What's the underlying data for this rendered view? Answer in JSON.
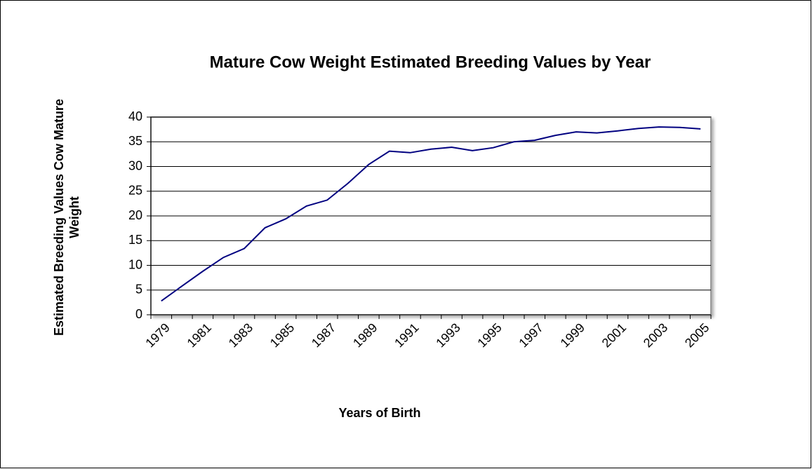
{
  "chart_data": {
    "type": "line",
    "title": "Mature Cow Weight Estimated Breeding Values by Year",
    "x_label": "Years of Birth",
    "y_label": "Estimated Breeding Values Cow Mature Weight",
    "categories": [
      "1979",
      null,
      "1981",
      null,
      "1983",
      null,
      "1985",
      null,
      "1987",
      null,
      "1989",
      null,
      "1991",
      null,
      "1993",
      null,
      "1995",
      null,
      "1997",
      null,
      "1999",
      null,
      "2001",
      null,
      "2003",
      null,
      "2005"
    ],
    "values": [
      2.8,
      5.8,
      8.8,
      11.6,
      13.4,
      17.6,
      19.4,
      22,
      23.2,
      26.6,
      30.4,
      33.1,
      32.8,
      33.5,
      33.9,
      33.2,
      33.8,
      35,
      35.3,
      36.3,
      37,
      36.8,
      37.2,
      37.7,
      38,
      37.9,
      37.6
    ],
    "color": "#000080",
    "ylim": [
      0,
      40
    ],
    "yticks": [
      0,
      5,
      10,
      15,
      20,
      25,
      30,
      35,
      40
    ],
    "grid": true
  }
}
